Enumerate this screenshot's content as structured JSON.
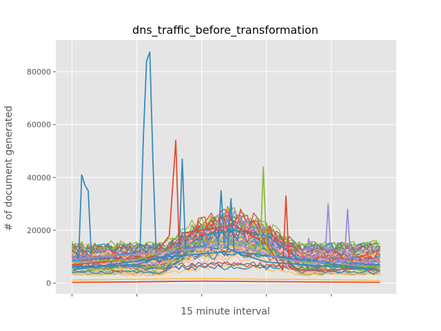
{
  "chart_data": {
    "type": "line",
    "title": "dns_traffic_before_transformation",
    "xlabel": "15 minute interval",
    "ylabel": "# of document generated",
    "xlim": [
      -5,
      100
    ],
    "ylim": [
      -4000,
      92000
    ],
    "y_ticks": [
      0,
      20000,
      40000,
      60000,
      80000
    ],
    "y_tick_labels": [
      "0",
      "20000",
      "40000",
      "60000",
      "80000"
    ],
    "x_ticks": [
      0,
      20,
      40,
      60,
      80
    ],
    "grid": true,
    "background": "#e5e5e5",
    "colors": [
      "#348abd",
      "#e24a33",
      "#988ed5",
      "#777777",
      "#fbc15e",
      "#8eba42",
      "#ffb5b8"
    ],
    "notable_series": [
      {
        "color": "#348abd",
        "x": [
          0,
          2,
          3,
          4,
          5,
          6,
          21,
          22,
          23,
          24,
          25,
          26,
          30,
          40,
          50,
          60,
          70,
          80,
          95
        ],
        "values": [
          9000,
          8000,
          41000,
          37000,
          35000,
          9000,
          12000,
          55000,
          84000,
          87500,
          45000,
          10000,
          9000,
          18000,
          20000,
          18000,
          9000,
          8000,
          7000
        ]
      },
      {
        "color": "#e24a33",
        "x": [
          0,
          10,
          25,
          30,
          32,
          33,
          34,
          40,
          50,
          60,
          65,
          66,
          67,
          70,
          80,
          95
        ],
        "values": [
          7000,
          8000,
          10000,
          18000,
          54000,
          15000,
          19000,
          20000,
          22000,
          15000,
          5000,
          33000,
          6000,
          5000,
          5000,
          6000
        ]
      },
      {
        "color": "#8eba42",
        "x": [
          0,
          20,
          40,
          55,
          58,
          59,
          60,
          62,
          70,
          95
        ],
        "values": [
          8000,
          9000,
          16000,
          15000,
          10000,
          44000,
          14000,
          10000,
          8000,
          6000
        ]
      },
      {
        "color": "#348abd",
        "x": [
          0,
          20,
          33,
          34,
          35,
          40,
          45,
          46,
          47,
          50,
          95
        ],
        "values": [
          6000,
          7000,
          12000,
          47000,
          13000,
          14000,
          13000,
          35000,
          14000,
          12000,
          5000
        ]
      },
      {
        "color": "#988ed5",
        "x": [
          0,
          30,
          50,
          65,
          72,
          73,
          74,
          78,
          79,
          80,
          84,
          85,
          86,
          95
        ],
        "values": [
          9000,
          12000,
          15000,
          9000,
          8000,
          17000,
          8000,
          8000,
          30000,
          8000,
          8000,
          28000,
          8000,
          8000
        ]
      },
      {
        "color": "#348abd",
        "x": [
          0,
          30,
          48,
          49,
          50,
          52,
          60,
          95
        ],
        "values": [
          5000,
          10000,
          12000,
          32000,
          12000,
          11000,
          8000,
          5000
        ]
      },
      {
        "color": "#e24a33",
        "x": [
          0,
          20,
          40,
          60,
          80,
          95
        ],
        "values": [
          300,
          500,
          800,
          600,
          400,
          300
        ]
      },
      {
        "color": "#fbc15e",
        "x": [
          0,
          20,
          40,
          60,
          80,
          95
        ],
        "values": [
          1200,
          1500,
          1800,
          1500,
          1300,
          1000
        ]
      }
    ],
    "bundle": {
      "count": 60,
      "x_min": 0,
      "x_max": 95,
      "base_range": [
        3000,
        14000
      ],
      "peak_window": [
        28,
        70
      ],
      "peak_max": 30000
    }
  }
}
